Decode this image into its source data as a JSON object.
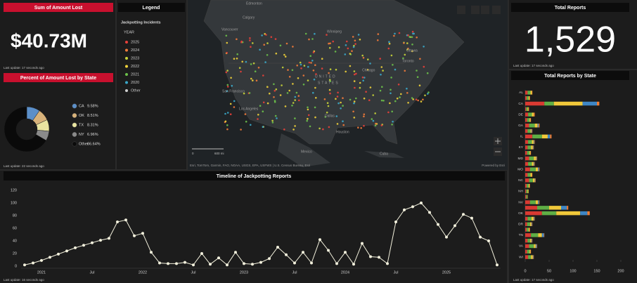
{
  "amount_panel": {
    "title": "Sum of Amount Lost",
    "value": "$40.73M",
    "updated": "Last update: 17 seconds ago"
  },
  "legend_panel": {
    "title": "Legend",
    "layer": "Jackpotting Incidents",
    "field": "YEAR",
    "items": [
      {
        "label": "2025",
        "color": "#e8403a"
      },
      {
        "label": "2024",
        "color": "#f07a3a"
      },
      {
        "label": "2023",
        "color": "#c8d43a"
      },
      {
        "label": "2022",
        "color": "#f0d23a"
      },
      {
        "label": "2021",
        "color": "#6cc04a"
      },
      {
        "label": "2020",
        "color": "#3aa7c8"
      },
      {
        "label": "Other",
        "color": "#cfcfcf"
      }
    ]
  },
  "map": {
    "labels": [
      "Edmonton",
      "Calgary",
      "Vancouver",
      "Winnipeg",
      "Ottawa",
      "Toronto",
      "Chicago",
      "UNITED",
      "STATES",
      "San Francisco",
      "Los Angeles",
      "Dallas",
      "Houston",
      "Mexico",
      "Cuba"
    ],
    "scale": [
      "0",
      "600 mi"
    ],
    "attribution": "Esri, TomTom, Garmin, FAO, NOAA, USGS, EPA, USFWS | U.S. Census Bureau, Esri",
    "powered": "Powered by Esri"
  },
  "total_panel": {
    "title": "Total Reports",
    "value": "1,529",
    "updated": "Last update: 17 seconds ago"
  },
  "pie_updated": "Last update: 22 seconds ago",
  "timeline_updated": "Last update: 16 seconds ago",
  "bar_updated": "Last update: 17 seconds ago",
  "chart_data": [
    {
      "type": "pie",
      "title": "Percent of Amount Lost by State",
      "categories": [
        "CA",
        "OK",
        "TX",
        "NY",
        "Other"
      ],
      "values": [
        9.58,
        8.51,
        8.31,
        6.96,
        66.64
      ],
      "value_labels": [
        "9.58%",
        "8.51%",
        "8.31%",
        "6.96%",
        "66.64%"
      ],
      "colors": [
        "#5b8fc9",
        "#d8b27a",
        "#e9e4a0",
        "#8a8a8a",
        "#0a0a0a"
      ]
    },
    {
      "type": "line",
      "title": "Timeline of Jackpotting Reports",
      "categories": [
        null,
        null,
        "2021",
        null,
        null,
        null,
        null,
        null,
        "Jul",
        null,
        null,
        null,
        null,
        null,
        "2022",
        null,
        null,
        null,
        null,
        null,
        "Jul",
        null,
        null,
        null,
        null,
        null,
        "2023",
        null,
        null,
        null,
        null,
        null,
        "Jul",
        null,
        null,
        null,
        null,
        null,
        "2024",
        null,
        null,
        null,
        null,
        null,
        "Jul",
        null,
        null,
        null,
        null,
        null,
        "2025",
        null,
        null,
        null,
        null,
        null,
        null
      ],
      "values": [
        2,
        5,
        9,
        14,
        19,
        24,
        29,
        33,
        37,
        41,
        44,
        70,
        73,
        48,
        52,
        22,
        5,
        4,
        4,
        6,
        2,
        20,
        3,
        13,
        2,
        22,
        4,
        3,
        6,
        12,
        30,
        18,
        5,
        22,
        5,
        42,
        25,
        4,
        22,
        3,
        36,
        15,
        14,
        4,
        70,
        89,
        94,
        100,
        85,
        66,
        46,
        64,
        82,
        76,
        46,
        40,
        2
      ],
      "color": "#f2f0dc",
      "ylim": [
        0,
        120
      ],
      "yticks": [
        0,
        20,
        40,
        60,
        80,
        100,
        120
      ],
      "grid": false
    },
    {
      "type": "hbar",
      "title": "Total Reports by State",
      "categories": [
        "AL",
        null,
        "CA",
        null,
        "DE",
        null,
        "GA",
        null,
        "IL",
        null,
        "KY",
        null,
        "MD",
        null,
        "MO",
        null,
        "NC",
        null,
        "NH",
        null,
        "NV",
        null,
        "OK",
        null,
        "OR",
        null,
        "TN",
        null,
        "VA",
        null,
        "WI"
      ],
      "series": [
        {
          "color": "#d93a32",
          "values": [
            5,
            3,
            40,
            2,
            6,
            4,
            8,
            5,
            15,
            6,
            5,
            4,
            8,
            6,
            10,
            5,
            8,
            3,
            2,
            2,
            10,
            25,
            35,
            5,
            4,
            3,
            12,
            5,
            8,
            4,
            6
          ]
        },
        {
          "color": "#5fae45",
          "values": [
            6,
            4,
            20,
            3,
            8,
            5,
            12,
            6,
            20,
            8,
            7,
            5,
            10,
            8,
            12,
            6,
            8,
            4,
            3,
            2,
            12,
            25,
            30,
            8,
            6,
            4,
            15,
            5,
            10,
            5,
            6
          ]
        },
        {
          "color": "#f0c83a",
          "values": [
            3,
            2,
            60,
            2,
            4,
            2,
            6,
            2,
            12,
            4,
            4,
            2,
            5,
            4,
            5,
            3,
            4,
            2,
            2,
            1,
            5,
            25,
            50,
            5,
            3,
            2,
            8,
            3,
            4,
            2,
            4
          ]
        },
        {
          "color": "#3f86c4",
          "values": [
            0,
            0,
            30,
            0,
            0,
            0,
            2,
            1,
            5,
            1,
            1,
            0,
            1,
            1,
            2,
            0,
            1,
            0,
            0,
            0,
            2,
            12,
            15,
            1,
            1,
            0,
            4,
            1,
            2,
            0,
            1
          ]
        },
        {
          "color": "#ef7d33",
          "values": [
            1,
            1,
            5,
            1,
            2,
            1,
            2,
            1,
            3,
            1,
            1,
            1,
            1,
            1,
            1,
            1,
            1,
            1,
            0,
            0,
            1,
            3,
            5,
            1,
            1,
            1,
            1,
            1,
            1,
            1,
            1
          ]
        }
      ],
      "xlim": [
        0,
        200
      ],
      "xticks": [
        0,
        50,
        100,
        150,
        200
      ]
    }
  ]
}
